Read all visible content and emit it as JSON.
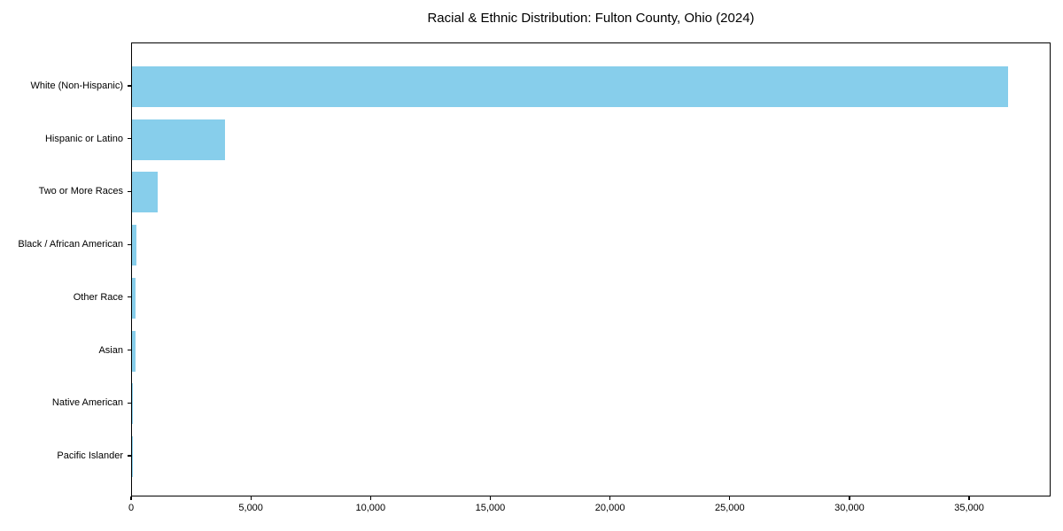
{
  "chart_data": {
    "type": "bar",
    "orientation": "horizontal",
    "title": "Racial & Ethnic Distribution: Fulton County, Ohio (2024)",
    "categories": [
      "White (Non-Hispanic)",
      "Hispanic or Latino",
      "Two or More Races",
      "Black / African American",
      "Other Race",
      "Asian",
      "Native American",
      "Pacific Islander"
    ],
    "values": [
      36600,
      3900,
      1060,
      170,
      150,
      160,
      40,
      10
    ],
    "xlabel": "",
    "ylabel": "",
    "xlim": [
      0,
      38400
    ],
    "x_ticks": [
      0,
      5000,
      10000,
      15000,
      20000,
      25000,
      30000,
      35000
    ],
    "x_tick_labels": [
      "0",
      "5,000",
      "10,000",
      "15,000",
      "20,000",
      "25,000",
      "30,000",
      "35,000"
    ],
    "bar_color": "#87CEEB",
    "frame_color": "#000000",
    "background_color": "#ffffff",
    "grid": false,
    "legend": null
  }
}
